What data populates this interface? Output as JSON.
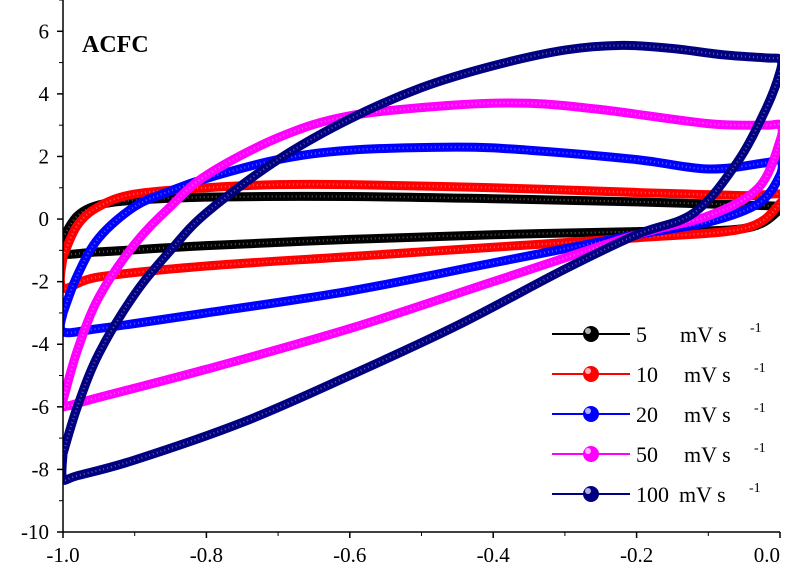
{
  "chart_data": {
    "type": "line",
    "title": "ACFC",
    "xlabel": "",
    "ylabel": "",
    "xlim": [
      -1.0,
      0.0
    ],
    "ylim": [
      -10,
      7
    ],
    "xticks": [
      "-1.0",
      "-0.8",
      "-0.6",
      "-0.4",
      "-0.2",
      "0.0"
    ],
    "yticks": [
      "6",
      "4",
      "2",
      "0",
      "-2",
      "-4",
      "-6",
      "-8",
      "-10"
    ],
    "legend_position": "bottom-right",
    "series": [
      {
        "name": "5",
        "unit": "mV s",
        "unit_sup": "-1",
        "color": "#000000",
        "upper": [
          [
            -1.0,
            -0.6
          ],
          [
            -0.98,
            0.1
          ],
          [
            -0.95,
            0.45
          ],
          [
            -0.9,
            0.6
          ],
          [
            -0.8,
            0.7
          ],
          [
            -0.6,
            0.72
          ],
          [
            -0.4,
            0.65
          ],
          [
            -0.2,
            0.55
          ],
          [
            -0.05,
            0.45
          ],
          [
            0.0,
            0.4
          ]
        ],
        "lower": [
          [
            0.0,
            0.3
          ],
          [
            -0.05,
            -0.3
          ],
          [
            -0.2,
            -0.4
          ],
          [
            -0.4,
            -0.5
          ],
          [
            -0.6,
            -0.65
          ],
          [
            -0.8,
            -0.85
          ],
          [
            -0.95,
            -1.05
          ],
          [
            -1.0,
            -1.1
          ]
        ]
      },
      {
        "name": "10",
        "unit": "mV s",
        "unit_sup": "-1",
        "color": "#ff0000",
        "upper": [
          [
            -1.0,
            -1.2
          ],
          [
            -0.98,
            -0.2
          ],
          [
            -0.95,
            0.4
          ],
          [
            -0.9,
            0.8
          ],
          [
            -0.8,
            1.0
          ],
          [
            -0.7,
            1.1
          ],
          [
            -0.6,
            1.1
          ],
          [
            -0.4,
            1.0
          ],
          [
            -0.2,
            0.85
          ],
          [
            -0.05,
            0.75
          ],
          [
            0.0,
            0.8
          ]
        ],
        "lower": [
          [
            0.0,
            0.5
          ],
          [
            -0.05,
            -0.3
          ],
          [
            -0.2,
            -0.6
          ],
          [
            -0.4,
            -0.9
          ],
          [
            -0.6,
            -1.2
          ],
          [
            -0.8,
            -1.5
          ],
          [
            -0.95,
            -1.85
          ],
          [
            -1.0,
            -2.2
          ]
        ]
      },
      {
        "name": "20",
        "unit": "mV s",
        "unit_sup": "-1",
        "color": "#0000ff",
        "upper": [
          [
            -1.0,
            -3.0
          ],
          [
            -0.98,
            -1.8
          ],
          [
            -0.95,
            -0.6
          ],
          [
            -0.9,
            0.4
          ],
          [
            -0.85,
            0.9
          ],
          [
            -0.8,
            1.3
          ],
          [
            -0.7,
            1.9
          ],
          [
            -0.6,
            2.2
          ],
          [
            -0.45,
            2.3
          ],
          [
            -0.35,
            2.2
          ],
          [
            -0.2,
            1.9
          ],
          [
            -0.1,
            1.6
          ],
          [
            -0.02,
            1.8
          ],
          [
            0.0,
            1.9
          ]
        ],
        "lower": [
          [
            0.0,
            1.4
          ],
          [
            -0.03,
            0.5
          ],
          [
            -0.1,
            -0.1
          ],
          [
            -0.2,
            -0.5
          ],
          [
            -0.4,
            -1.4
          ],
          [
            -0.6,
            -2.3
          ],
          [
            -0.8,
            -3.0
          ],
          [
            -0.95,
            -3.5
          ],
          [
            -1.0,
            -3.6
          ]
        ]
      },
      {
        "name": "50",
        "unit": "mV s",
        "unit_sup": "-1",
        "color": "#ff00ff",
        "upper": [
          [
            -1.0,
            -5.8
          ],
          [
            -0.98,
            -4.2
          ],
          [
            -0.95,
            -2.5
          ],
          [
            -0.9,
            -0.8
          ],
          [
            -0.85,
            0.4
          ],
          [
            -0.8,
            1.4
          ],
          [
            -0.7,
            2.6
          ],
          [
            -0.6,
            3.3
          ],
          [
            -0.45,
            3.65
          ],
          [
            -0.35,
            3.7
          ],
          [
            -0.25,
            3.5
          ],
          [
            -0.1,
            3.05
          ],
          [
            -0.02,
            3.0
          ],
          [
            0.0,
            3.0
          ]
        ],
        "lower": [
          [
            0.0,
            2.5
          ],
          [
            -0.03,
            1.0
          ],
          [
            -0.1,
            0.1
          ],
          [
            -0.2,
            -0.5
          ],
          [
            -0.4,
            -2.0
          ],
          [
            -0.6,
            -3.5
          ],
          [
            -0.8,
            -4.8
          ],
          [
            -0.95,
            -5.7
          ],
          [
            -1.0,
            -6.0
          ]
        ]
      },
      {
        "name": "100",
        "unit": "mV s",
        "unit_sup": "-1",
        "color": "#000080",
        "upper": [
          [
            -1.0,
            -7.5
          ],
          [
            -0.98,
            -6.0
          ],
          [
            -0.95,
            -4.3
          ],
          [
            -0.9,
            -2.4
          ],
          [
            -0.85,
            -1.0
          ],
          [
            -0.8,
            0.2
          ],
          [
            -0.7,
            1.9
          ],
          [
            -0.6,
            3.2
          ],
          [
            -0.5,
            4.2
          ],
          [
            -0.4,
            4.9
          ],
          [
            -0.3,
            5.4
          ],
          [
            -0.22,
            5.55
          ],
          [
            -0.15,
            5.45
          ],
          [
            -0.08,
            5.25
          ],
          [
            -0.02,
            5.15
          ],
          [
            0.0,
            5.1
          ]
        ],
        "lower": [
          [
            0.0,
            4.7
          ],
          [
            -0.02,
            3.5
          ],
          [
            -0.06,
            1.8
          ],
          [
            -0.12,
            0.2
          ],
          [
            -0.2,
            -0.5
          ],
          [
            -0.3,
            -1.6
          ],
          [
            -0.45,
            -3.4
          ],
          [
            -0.6,
            -5.0
          ],
          [
            -0.75,
            -6.5
          ],
          [
            -0.9,
            -7.7
          ],
          [
            -0.98,
            -8.2
          ],
          [
            -1.0,
            -8.3
          ]
        ]
      }
    ]
  }
}
